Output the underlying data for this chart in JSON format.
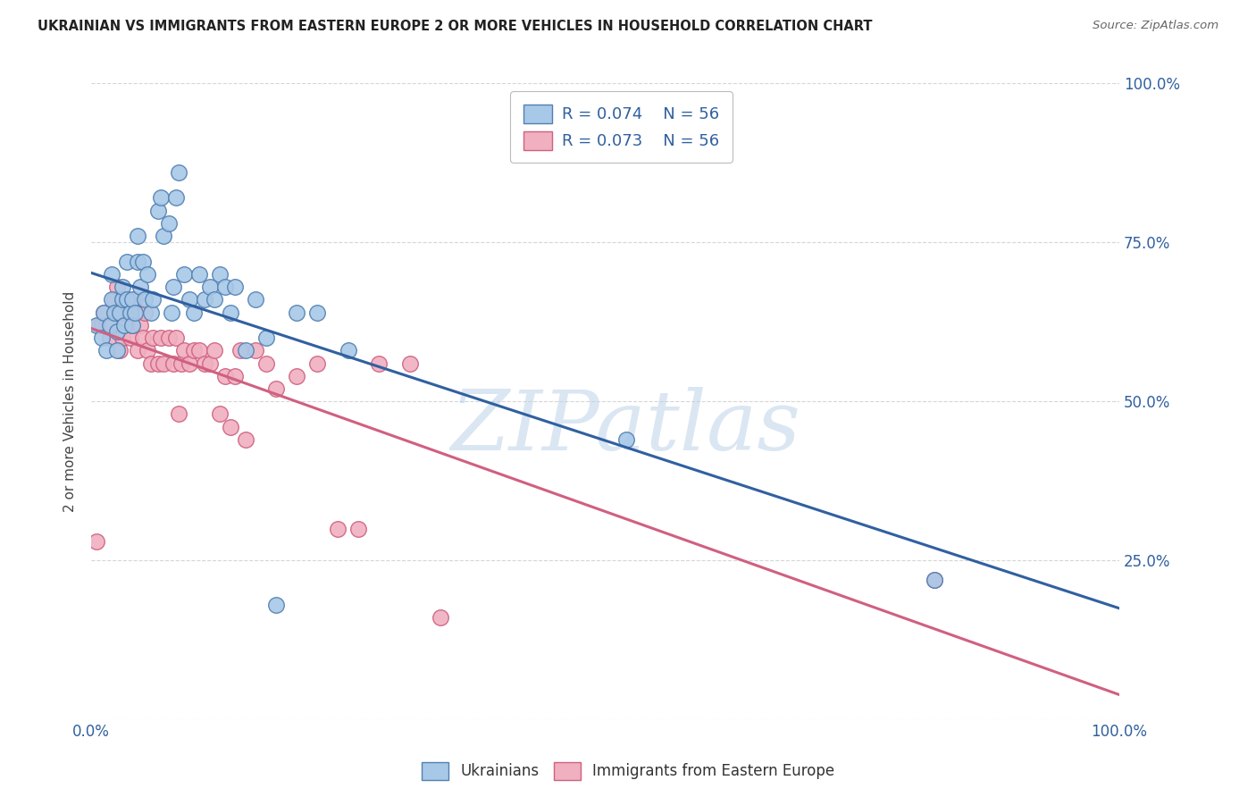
{
  "title": "UKRAINIAN VS IMMIGRANTS FROM EASTERN EUROPE 2 OR MORE VEHICLES IN HOUSEHOLD CORRELATION CHART",
  "source": "Source: ZipAtlas.com",
  "ylabel": "2 or more Vehicles in Household",
  "legend_label1": "Ukrainians",
  "legend_label2": "Immigrants from Eastern Europe",
  "R1": "0.074",
  "N1": "56",
  "R2": "0.073",
  "N2": "56",
  "blue_color": "#a8c8e8",
  "pink_color": "#f0b0c0",
  "blue_edge": "#5080b0",
  "pink_edge": "#d06080",
  "line_blue": "#3060a0",
  "line_pink": "#d06080",
  "background_color": "#ffffff",
  "blue_x": [
    0.005,
    0.01,
    0.012,
    0.015,
    0.018,
    0.02,
    0.02,
    0.022,
    0.025,
    0.025,
    0.028,
    0.03,
    0.03,
    0.032,
    0.035,
    0.035,
    0.038,
    0.04,
    0.04,
    0.042,
    0.045,
    0.045,
    0.048,
    0.05,
    0.052,
    0.055,
    0.058,
    0.06,
    0.065,
    0.068,
    0.07,
    0.075,
    0.078,
    0.08,
    0.082,
    0.085,
    0.09,
    0.095,
    0.1,
    0.105,
    0.11,
    0.115,
    0.12,
    0.125,
    0.13,
    0.135,
    0.14,
    0.15,
    0.16,
    0.17,
    0.18,
    0.2,
    0.22,
    0.25,
    0.52,
    0.82
  ],
  "blue_y": [
    0.62,
    0.6,
    0.64,
    0.58,
    0.62,
    0.66,
    0.7,
    0.64,
    0.58,
    0.61,
    0.64,
    0.66,
    0.68,
    0.62,
    0.66,
    0.72,
    0.64,
    0.62,
    0.66,
    0.64,
    0.72,
    0.76,
    0.68,
    0.72,
    0.66,
    0.7,
    0.64,
    0.66,
    0.8,
    0.82,
    0.76,
    0.78,
    0.64,
    0.68,
    0.82,
    0.86,
    0.7,
    0.66,
    0.64,
    0.7,
    0.66,
    0.68,
    0.66,
    0.7,
    0.68,
    0.64,
    0.68,
    0.58,
    0.66,
    0.6,
    0.18,
    0.64,
    0.64,
    0.58,
    0.44,
    0.22
  ],
  "pink_x": [
    0.005,
    0.008,
    0.01,
    0.012,
    0.015,
    0.018,
    0.02,
    0.022,
    0.025,
    0.025,
    0.028,
    0.03,
    0.032,
    0.035,
    0.038,
    0.04,
    0.042,
    0.045,
    0.048,
    0.05,
    0.052,
    0.055,
    0.058,
    0.06,
    0.065,
    0.068,
    0.07,
    0.075,
    0.08,
    0.082,
    0.085,
    0.088,
    0.09,
    0.095,
    0.1,
    0.105,
    0.11,
    0.115,
    0.12,
    0.125,
    0.13,
    0.135,
    0.14,
    0.145,
    0.15,
    0.16,
    0.17,
    0.18,
    0.2,
    0.22,
    0.24,
    0.26,
    0.28,
    0.31,
    0.34,
    0.82
  ],
  "pink_y": [
    0.28,
    0.62,
    0.62,
    0.64,
    0.62,
    0.6,
    0.62,
    0.66,
    0.64,
    0.68,
    0.58,
    0.6,
    0.62,
    0.64,
    0.6,
    0.62,
    0.66,
    0.58,
    0.62,
    0.6,
    0.64,
    0.58,
    0.56,
    0.6,
    0.56,
    0.6,
    0.56,
    0.6,
    0.56,
    0.6,
    0.48,
    0.56,
    0.58,
    0.56,
    0.58,
    0.58,
    0.56,
    0.56,
    0.58,
    0.48,
    0.54,
    0.46,
    0.54,
    0.58,
    0.44,
    0.58,
    0.56,
    0.52,
    0.54,
    0.56,
    0.3,
    0.3,
    0.56,
    0.56,
    0.16,
    0.22
  ]
}
